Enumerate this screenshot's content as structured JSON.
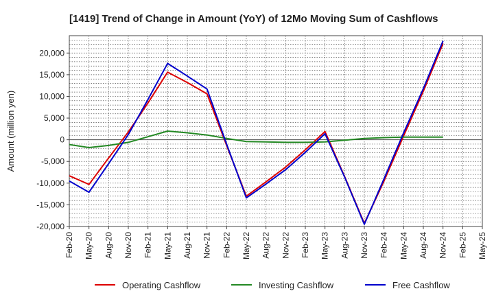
{
  "chart_data": {
    "type": "line",
    "title": "[1419]  Trend of Change in Amount (YoY) of 12Mo Moving Sum of Cashflows",
    "xlabel": "",
    "ylabel": "Amount (million yen)",
    "ylim": [
      -20000,
      24000
    ],
    "yticks": [
      -20000,
      -15000,
      -10000,
      -5000,
      0,
      5000,
      10000,
      15000,
      20000
    ],
    "ytick_labels": [
      "-20,000",
      "-15,000",
      "-10,000",
      "-5,000",
      "0",
      "5,000",
      "10,000",
      "15,000",
      "20,000"
    ],
    "categories": [
      "Feb-20",
      "May-20",
      "Aug-20",
      "Nov-20",
      "Feb-21",
      "May-21",
      "Aug-21",
      "Nov-21",
      "Feb-22",
      "May-22",
      "Aug-22",
      "Nov-22",
      "Feb-23",
      "May-23",
      "Aug-23",
      "Nov-23",
      "Feb-24",
      "May-24",
      "Aug-24",
      "Nov-24",
      "Feb-25",
      "May-25"
    ],
    "grid": true,
    "legend_position": "bottom",
    "series": [
      {
        "name": "Operating Cashflow",
        "color": "#dd0000",
        "values": [
          -8300,
          -10300,
          -4200,
          1800,
          8500,
          15600,
          13200,
          10600,
          -1300,
          -13000,
          -9700,
          -6300,
          -2300,
          1900,
          -8500,
          -19300,
          -9500,
          900,
          11200,
          22200,
          null,
          null
        ]
      },
      {
        "name": "Investing Cashflow",
        "color": "#228822",
        "values": [
          -1100,
          -1800,
          -1300,
          -600,
          700,
          2000,
          1600,
          1100,
          300,
          -400,
          -500,
          -600,
          -600,
          -500,
          -100,
          300,
          500,
          600,
          600,
          600,
          null,
          null
        ]
      },
      {
        "name": "Free Cashflow",
        "color": "#0000cc",
        "values": [
          -9500,
          -12100,
          -5500,
          1200,
          9300,
          17600,
          14700,
          11700,
          -1000,
          -13400,
          -10200,
          -6900,
          -2900,
          1400,
          -8600,
          -19500,
          -9000,
          1600,
          11800,
          22800,
          null,
          null
        ]
      }
    ]
  }
}
